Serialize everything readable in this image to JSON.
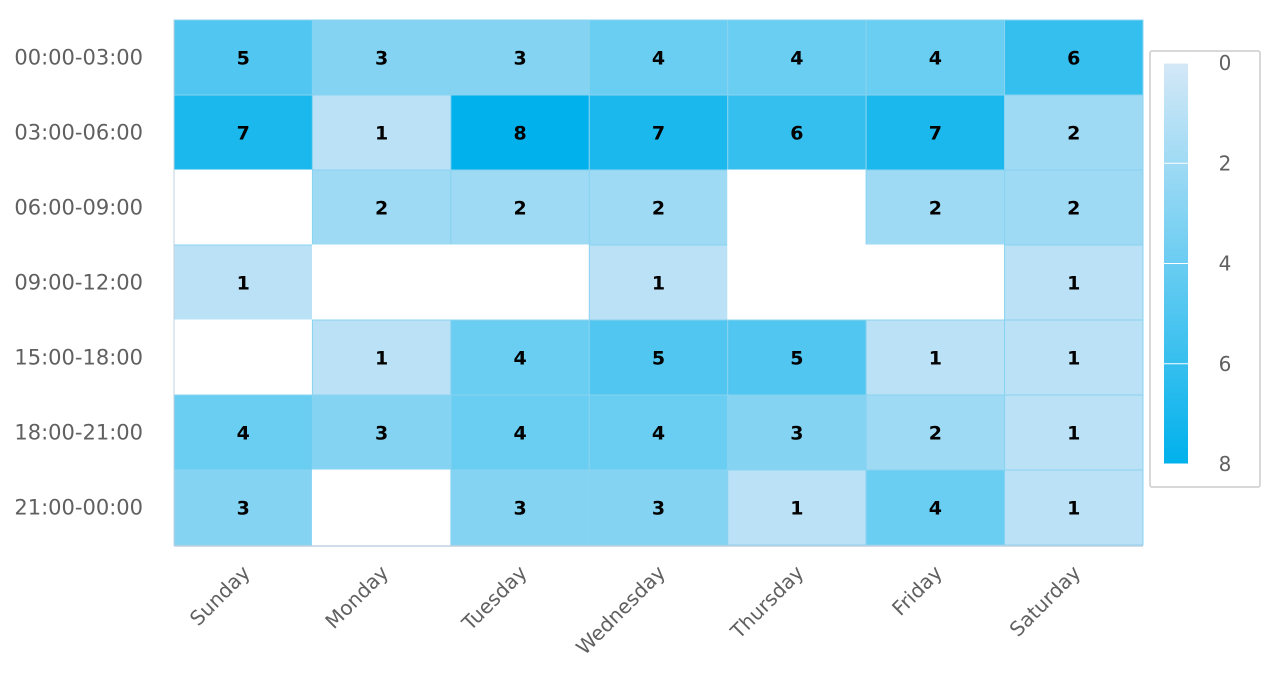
{
  "chart_data": {
    "type": "heatmap",
    "title": "",
    "xlabel": "",
    "ylabel": "",
    "x_categories": [
      "Sunday",
      "Monday",
      "Tuesday",
      "Wednesday",
      "Thursday",
      "Friday",
      "Saturday"
    ],
    "y_categories": [
      "00:00-03:00",
      "03:00-06:00",
      "06:00-09:00",
      "09:00-12:00",
      "15:00-18:00",
      "18:00-21:00",
      "21:00-00:00"
    ],
    "values": [
      [
        5,
        3,
        3,
        4,
        4,
        4,
        6
      ],
      [
        7,
        1,
        8,
        7,
        6,
        7,
        2
      ],
      [
        null,
        2,
        2,
        2,
        null,
        2,
        2
      ],
      [
        1,
        null,
        null,
        1,
        null,
        null,
        1
      ],
      [
        null,
        1,
        4,
        5,
        5,
        1,
        1
      ],
      [
        4,
        3,
        4,
        4,
        3,
        2,
        1
      ],
      [
        3,
        null,
        3,
        3,
        1,
        4,
        1
      ]
    ],
    "color_scale": {
      "min": 0,
      "max": 8,
      "min_color": "#d4e8f7",
      "max_color": "#00b1ec",
      "ticks": [
        "0",
        "2",
        "4",
        "6",
        "8"
      ]
    },
    "legend_position": "right",
    "empty_cell_color": "#ffffff",
    "cell_border_color": "#89d3f0"
  }
}
